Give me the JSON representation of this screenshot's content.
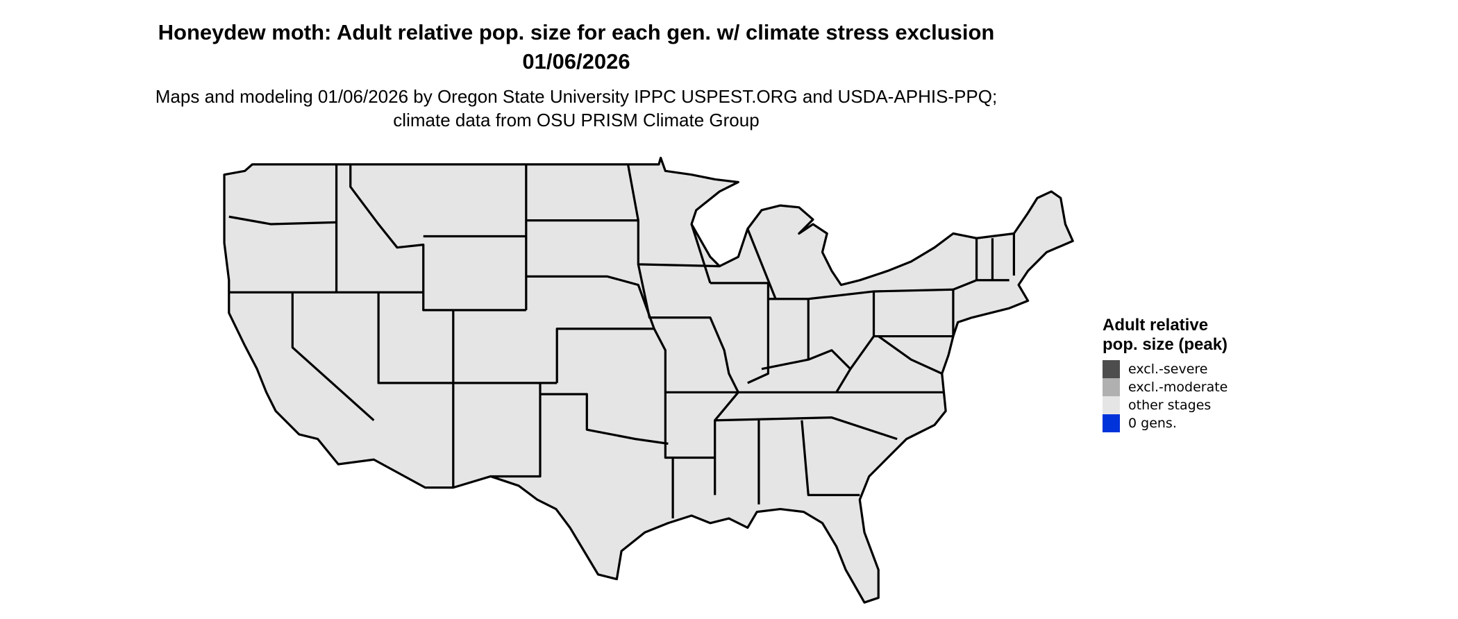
{
  "title": "Honeydew moth: Adult relative pop. size for each gen. w/ climate stress exclusion 01/06/2026",
  "subtitle": "Maps and modeling 01/06/2026 by Oregon State University IPPC USPEST.ORG and USDA-APHIS-PPQ; climate data from OSU PRISM Climate Group",
  "map": {
    "fill_color": "#e5e5e5",
    "border_color": "#000000"
  },
  "legend": {
    "title": "Adult relative pop. size (peak)",
    "items": [
      {
        "label": "excl.-severe",
        "color": "#4d4d4d"
      },
      {
        "label": "excl.-moderate",
        "color": "#b0b0b0"
      },
      {
        "label": "other stages",
        "color": "#e5e5e5"
      },
      {
        "label": "0 gens.",
        "color": "#0033d9"
      }
    ]
  }
}
